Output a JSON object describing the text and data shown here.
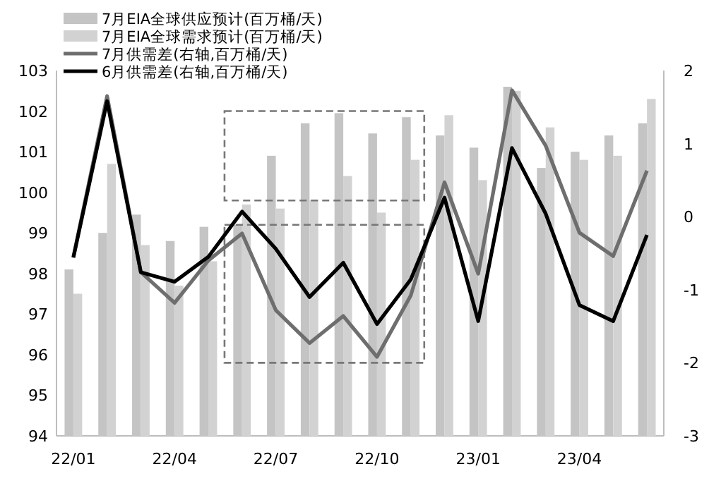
{
  "chart_data": {
    "type": "bar",
    "categories": [
      "22/01",
      null,
      null,
      "22/04",
      null,
      null,
      "22/07",
      null,
      null,
      "22/10",
      null,
      null,
      "23/01",
      null,
      null,
      "23/04",
      null,
      null
    ],
    "series": [
      {
        "name": "7月EIA全球供应预计(百万桶/天)",
        "color": "#c4c4c4",
        "values": [
          98.1,
          99.0,
          99.45,
          98.8,
          99.15,
          99.2,
          100.9,
          101.7,
          101.95,
          101.45,
          101.85,
          101.4,
          101.1,
          102.6,
          100.6,
          101.0,
          101.4,
          101.7
        ]
      },
      {
        "name": "7月EIA全球需求预计(百万桶/天)",
        "color": "#d2d2d2",
        "values": [
          97.5,
          100.7,
          98.7,
          97.7,
          98.3,
          99.7,
          99.6,
          99.8,
          100.4,
          99.5,
          100.8,
          101.9,
          100.3,
          102.5,
          101.6,
          100.8,
          100.9,
          102.3
        ]
      },
      {
        "name": "7月供需差(右轴,百万桶/天)",
        "type": "line",
        "axis": "y2",
        "color": "#6e6e6e",
        "values": [
          -0.55,
          1.65,
          -0.76,
          -1.18,
          -0.6,
          -0.23,
          -1.28,
          -1.73,
          -1.36,
          -1.92,
          -1.08,
          0.47,
          -0.78,
          1.73,
          0.97,
          -0.22,
          -0.54,
          0.63
        ]
      },
      {
        "name": "6月供需差(右轴,百万桶/天)",
        "type": "line",
        "axis": "y2",
        "color": "#000000",
        "values": [
          -0.56,
          1.58,
          -0.76,
          -0.89,
          -0.55,
          0.07,
          -0.44,
          -1.1,
          -0.63,
          -1.47,
          -0.86,
          0.26,
          -1.43,
          0.94,
          0.04,
          -1.21,
          -1.43,
          -0.25
        ]
      }
    ],
    "ylim": [
      94,
      103
    ],
    "yticks": [
      94,
      95,
      96,
      97,
      98,
      99,
      100,
      101,
      102,
      103
    ],
    "y2lim": [
      -3,
      2
    ],
    "y2ticks": [
      -3,
      -2,
      -1,
      0,
      1,
      2
    ],
    "legend": "top left"
  }
}
